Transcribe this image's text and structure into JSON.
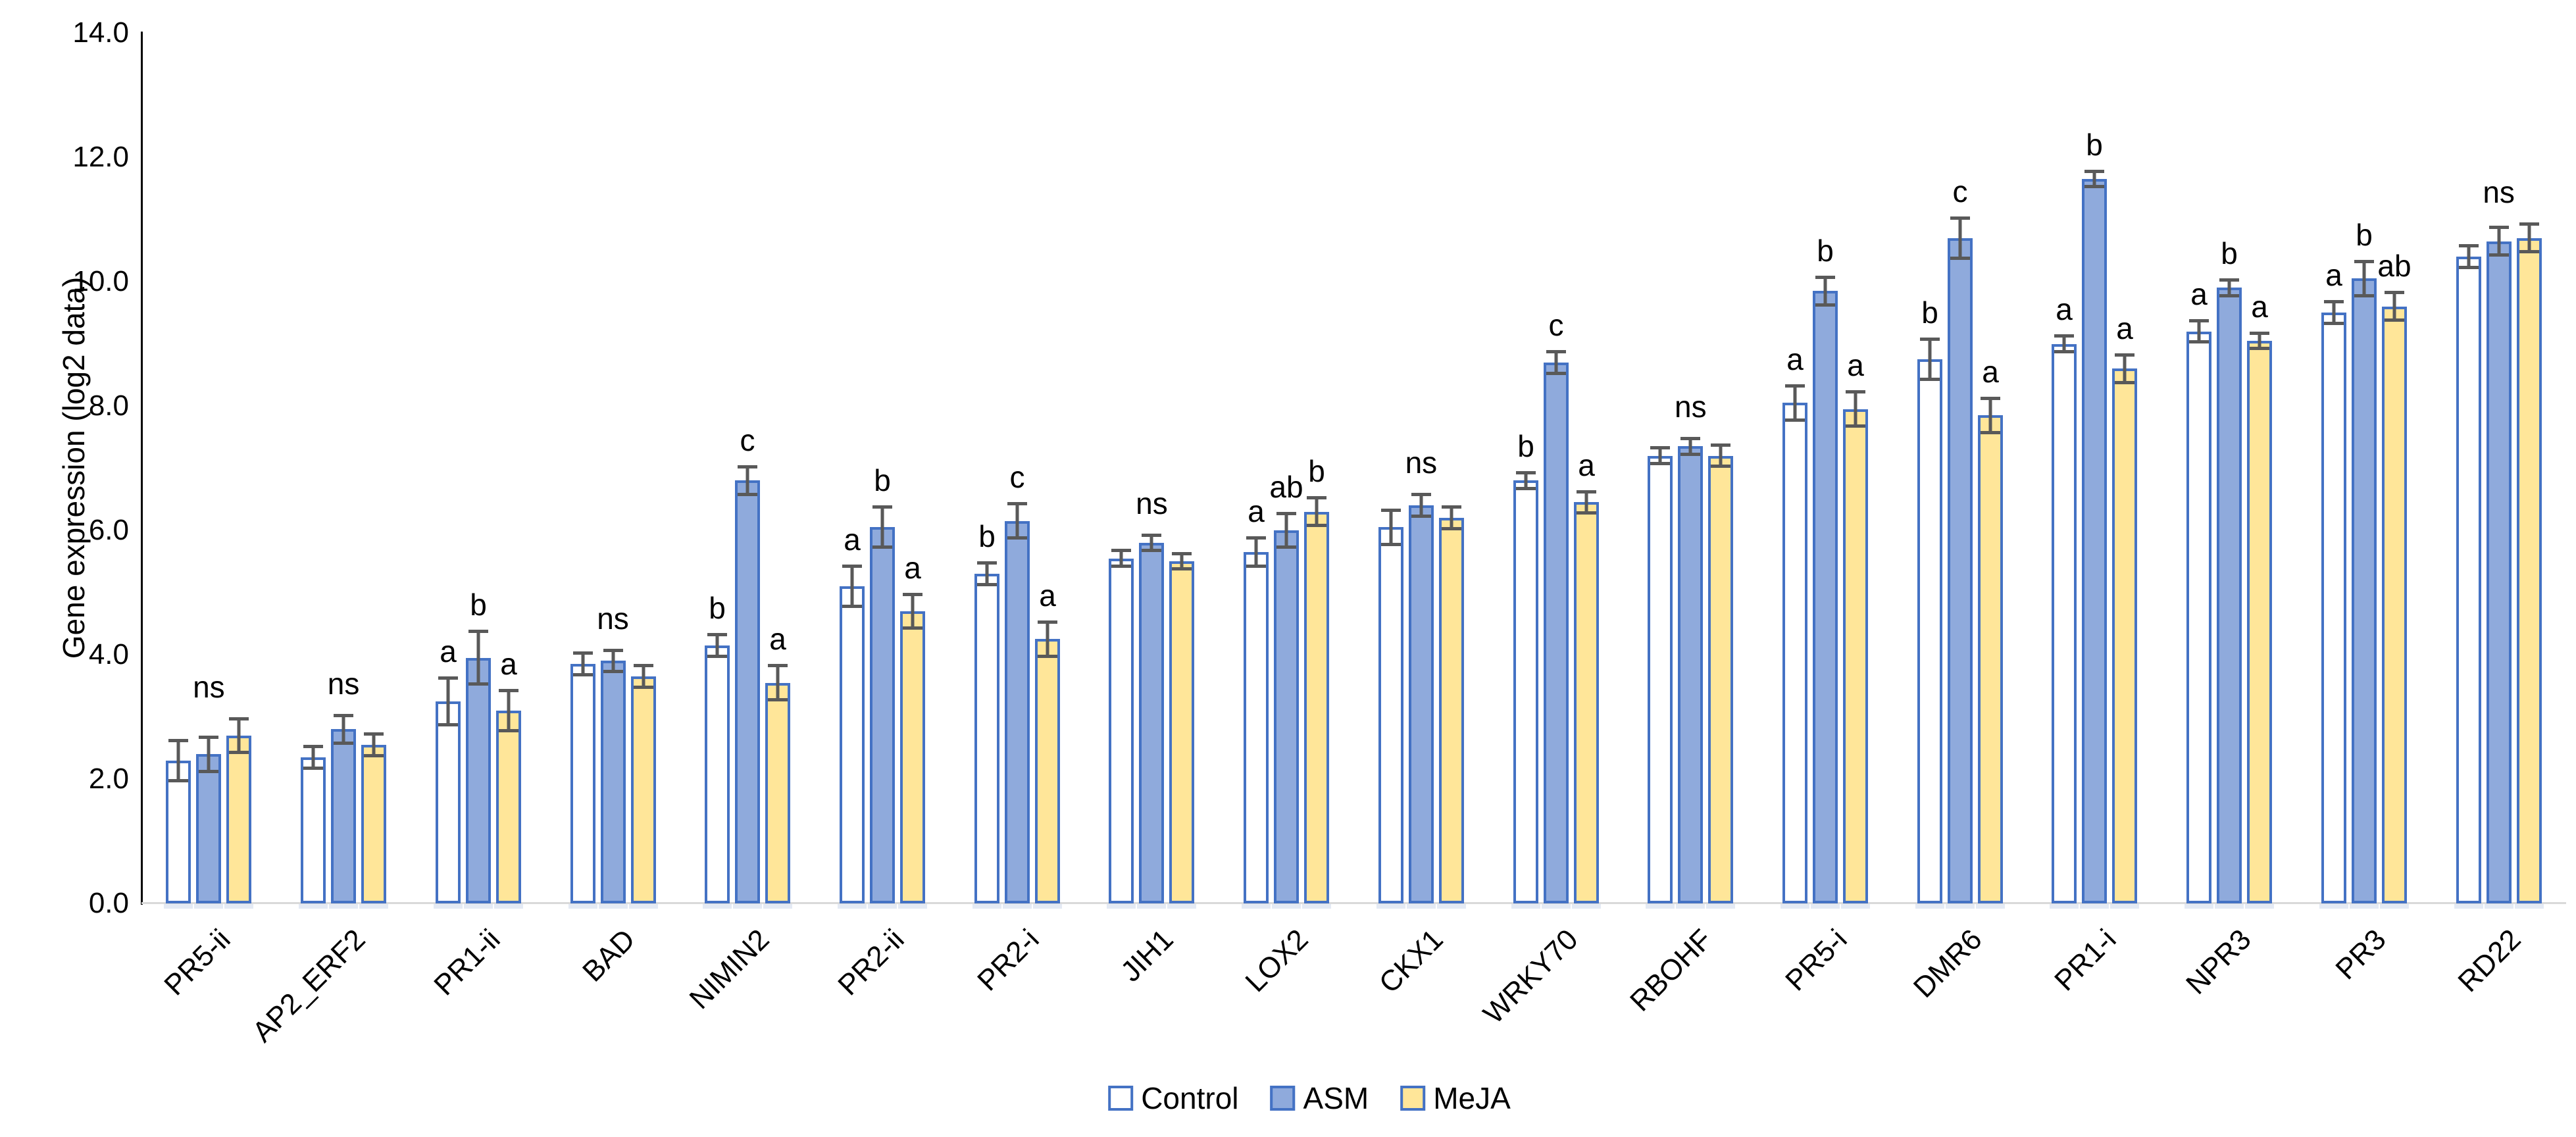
{
  "chart_data": {
    "type": "bar",
    "title": "",
    "ylabel": "Gene expression (log2 data)",
    "xlabel": "",
    "ylim": [
      0,
      14
    ],
    "ytick_interval": 2,
    "ytick_labels": [
      "0.0",
      "2.0",
      "4.0",
      "6.0",
      "8.0",
      "10.0",
      "12.0",
      "14.0"
    ],
    "grid": false,
    "legend_position": "bottom-center",
    "error_bars": true,
    "categories": [
      "PR5-ii",
      "AP2_ERF2",
      "PR1-ii",
      "BAD",
      "NIMIN2",
      "PR2-ii",
      "PR2-i",
      "JIH1",
      "LOX2",
      "CKX1",
      "WRKY70",
      "RBOHF",
      "PR5-i",
      "DMR6",
      "PR1-i",
      "NPR3",
      "PR3",
      "RD22"
    ],
    "series": [
      {
        "name": "Control",
        "fill": "#FFFFFF",
        "values": [
          2.3,
          2.35,
          3.25,
          3.85,
          4.15,
          5.1,
          5.3,
          5.55,
          5.65,
          6.05,
          6.8,
          7.2,
          8.05,
          8.75,
          9.0,
          9.2,
          9.5,
          10.4
        ],
        "errors": [
          0.35,
          0.2,
          0.4,
          0.2,
          0.2,
          0.35,
          0.2,
          0.15,
          0.25,
          0.3,
          0.15,
          0.15,
          0.3,
          0.35,
          0.15,
          0.2,
          0.2,
          0.2
        ]
      },
      {
        "name": "ASM",
        "fill": "#8FAADC",
        "values": [
          2.4,
          2.8,
          3.95,
          3.9,
          6.8,
          6.05,
          6.15,
          5.8,
          6.0,
          6.4,
          8.7,
          7.35,
          9.85,
          10.7,
          11.65,
          9.9,
          10.05,
          10.65
        ],
        "errors": [
          0.3,
          0.25,
          0.45,
          0.2,
          0.25,
          0.35,
          0.3,
          0.15,
          0.3,
          0.2,
          0.2,
          0.15,
          0.25,
          0.35,
          0.15,
          0.15,
          0.3,
          0.25
        ]
      },
      {
        "name": "MeJA",
        "fill": "#FFE699",
        "values": [
          2.7,
          2.55,
          3.1,
          3.65,
          3.55,
          4.7,
          4.25,
          5.5,
          6.3,
          6.2,
          6.45,
          7.2,
          7.95,
          7.85,
          8.6,
          9.05,
          9.6,
          10.7
        ],
        "errors": [
          0.3,
          0.2,
          0.35,
          0.2,
          0.3,
          0.3,
          0.3,
          0.15,
          0.25,
          0.2,
          0.2,
          0.2,
          0.3,
          0.3,
          0.25,
          0.15,
          0.25,
          0.25
        ]
      }
    ],
    "significance": [
      "ns",
      "ns",
      [
        "a",
        "b",
        "a"
      ],
      "ns",
      [
        "b",
        "c",
        "a"
      ],
      [
        "a",
        "b",
        "a"
      ],
      [
        "b",
        "c",
        "a"
      ],
      "ns",
      [
        "a",
        "ab",
        "b"
      ],
      "ns",
      [
        "b",
        "c",
        "a"
      ],
      "ns",
      [
        "a",
        "b",
        "a"
      ],
      [
        "b",
        "c",
        "a"
      ],
      [
        "a",
        "b",
        "a"
      ],
      [
        "a",
        "b",
        "a"
      ],
      [
        "a",
        "b",
        "ab"
      ],
      "ns"
    ],
    "colors": {
      "bar_border": "#4472C4",
      "error_bar": "#595959",
      "axis_line": "#000000",
      "baseline": "#D9D9D9",
      "text": "#000000",
      "bar_shadow": "#C9D6EA"
    }
  },
  "legend": {
    "items": [
      {
        "label": "Control"
      },
      {
        "label": "ASM"
      },
      {
        "label": "MeJA"
      }
    ]
  }
}
